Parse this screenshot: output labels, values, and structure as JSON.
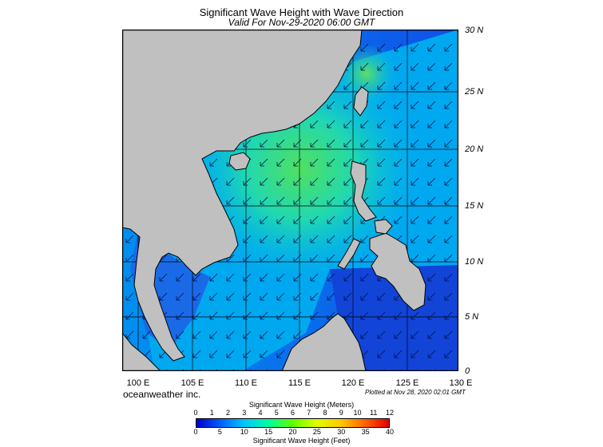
{
  "header": {
    "title": "Significant Wave Height with Wave Direction",
    "valid": "Valid For Nov-29-2020 06:00 GMT"
  },
  "map": {
    "lon_labels": [
      "100 E",
      "105 E",
      "110 E",
      "115 E",
      "120 E",
      "125 E",
      "130 E"
    ],
    "lat_labels": [
      "30 N",
      "25 N",
      "20 N",
      "15 N",
      "10 N",
      "5 N",
      "0"
    ],
    "lon_range": [
      99,
      130
    ],
    "lat_range": [
      0,
      30
    ],
    "arrow_direction": "southwest",
    "colors": {
      "land": "#c0c0c0",
      "ocean_low": "#1040e0",
      "ocean_mid": "#00b4f0",
      "ocean_high": "#40e060",
      "coast": "#000000"
    }
  },
  "footer": {
    "company": "oceanweather inc.",
    "plotted": "Plotted at Nov 28, 2020 02:01 GMT"
  },
  "colorbar": {
    "title_meters": "Significant Wave Height (Meters)",
    "title_feet": "Significant Wave Height (Feet)",
    "meter_ticks": [
      "0",
      "1",
      "2",
      "3",
      "4",
      "5",
      "6",
      "7",
      "8",
      "9",
      "10",
      "11",
      "12"
    ],
    "feet_ticks": [
      "0",
      "5",
      "10",
      "15",
      "20",
      "25",
      "30",
      "35",
      "40"
    ],
    "colors": [
      "#0000c8",
      "#0060ff",
      "#00c8ff",
      "#00ffa0",
      "#60ff00",
      "#e0ff00",
      "#ffc800",
      "#ff6400",
      "#e00000"
    ]
  }
}
